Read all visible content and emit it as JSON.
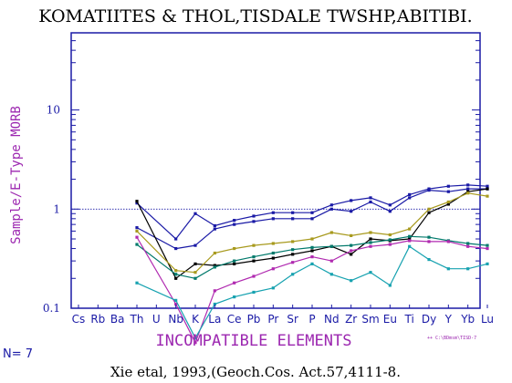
{
  "chart_data": {
    "type": "line",
    "title": "KOMATIITES & THOL,TISDALE TWSHP,ABITIBI.",
    "ylabel": "Sample/E-Type MORB",
    "xlabel": "INCOMPATIBLE ELEMENTS",
    "y_scale": "log",
    "ylim": [
      0.1,
      60
    ],
    "y_ticks": [
      "0.1",
      "1",
      "10"
    ],
    "reference_line": 1,
    "categories": [
      "Cs",
      "Rb",
      "Ba",
      "Th",
      "U",
      "Nb",
      "K",
      "La",
      "Ce",
      "Pb",
      "Pr",
      "Sr",
      "P",
      "Nd",
      "Zr",
      "Sm",
      "Eu",
      "Ti",
      "Dy",
      "Y",
      "Yb",
      "Lu"
    ],
    "series": [
      {
        "color": "#1a1aa6",
        "values": [
          null,
          null,
          null,
          1.15,
          null,
          0.5,
          0.9,
          0.68,
          0.77,
          0.85,
          0.92,
          0.92,
          0.92,
          1.1,
          1.22,
          1.3,
          1.1,
          1.4,
          1.6,
          1.7,
          1.75,
          1.7
        ]
      },
      {
        "color": "#1a1aa6",
        "values": [
          null,
          null,
          null,
          0.65,
          null,
          0.4,
          0.43,
          0.63,
          0.7,
          0.75,
          0.8,
          0.8,
          0.8,
          1.0,
          0.95,
          1.18,
          0.95,
          1.3,
          1.55,
          1.5,
          1.6,
          1.6
        ]
      },
      {
        "color": "#000000",
        "values": [
          null,
          null,
          null,
          1.2,
          null,
          0.2,
          0.28,
          0.27,
          0.28,
          0.3,
          0.32,
          0.35,
          0.38,
          0.42,
          0.35,
          0.5,
          0.48,
          0.5,
          0.92,
          1.12,
          1.5,
          1.6
        ]
      },
      {
        "color": "#a89a1e",
        "values": [
          null,
          null,
          null,
          0.6,
          null,
          0.24,
          0.23,
          0.36,
          0.4,
          0.43,
          0.45,
          0.47,
          0.5,
          0.58,
          0.54,
          0.58,
          0.55,
          0.63,
          1.0,
          1.18,
          1.45,
          1.35
        ]
      },
      {
        "color": "#00796b",
        "values": [
          null,
          null,
          null,
          0.44,
          null,
          0.22,
          0.2,
          0.26,
          0.3,
          0.33,
          0.36,
          0.39,
          0.41,
          0.42,
          0.43,
          0.46,
          0.49,
          0.53,
          0.52,
          0.48,
          0.45,
          0.43
        ]
      },
      {
        "color": "#b02ab0",
        "values": [
          null,
          null,
          null,
          0.52,
          null,
          0.11,
          0.045,
          0.15,
          0.18,
          0.21,
          0.25,
          0.29,
          0.33,
          0.3,
          0.38,
          0.42,
          0.44,
          0.48,
          0.47,
          0.47,
          0.42,
          0.4
        ]
      },
      {
        "color": "#17a2b0",
        "values": [
          null,
          null,
          null,
          0.18,
          null,
          0.12,
          0.05,
          0.11,
          0.13,
          0.145,
          0.16,
          0.22,
          0.28,
          0.22,
          0.19,
          0.23,
          0.17,
          0.42,
          0.31,
          0.25,
          0.25,
          0.28
        ]
      }
    ]
  },
  "count_label": "N= 7",
  "source_label": "++ C:\\BDmsm\\TISD-7",
  "caption": "Xie etal, 1993,(Geoch.Cos. Act.57,4111-8."
}
